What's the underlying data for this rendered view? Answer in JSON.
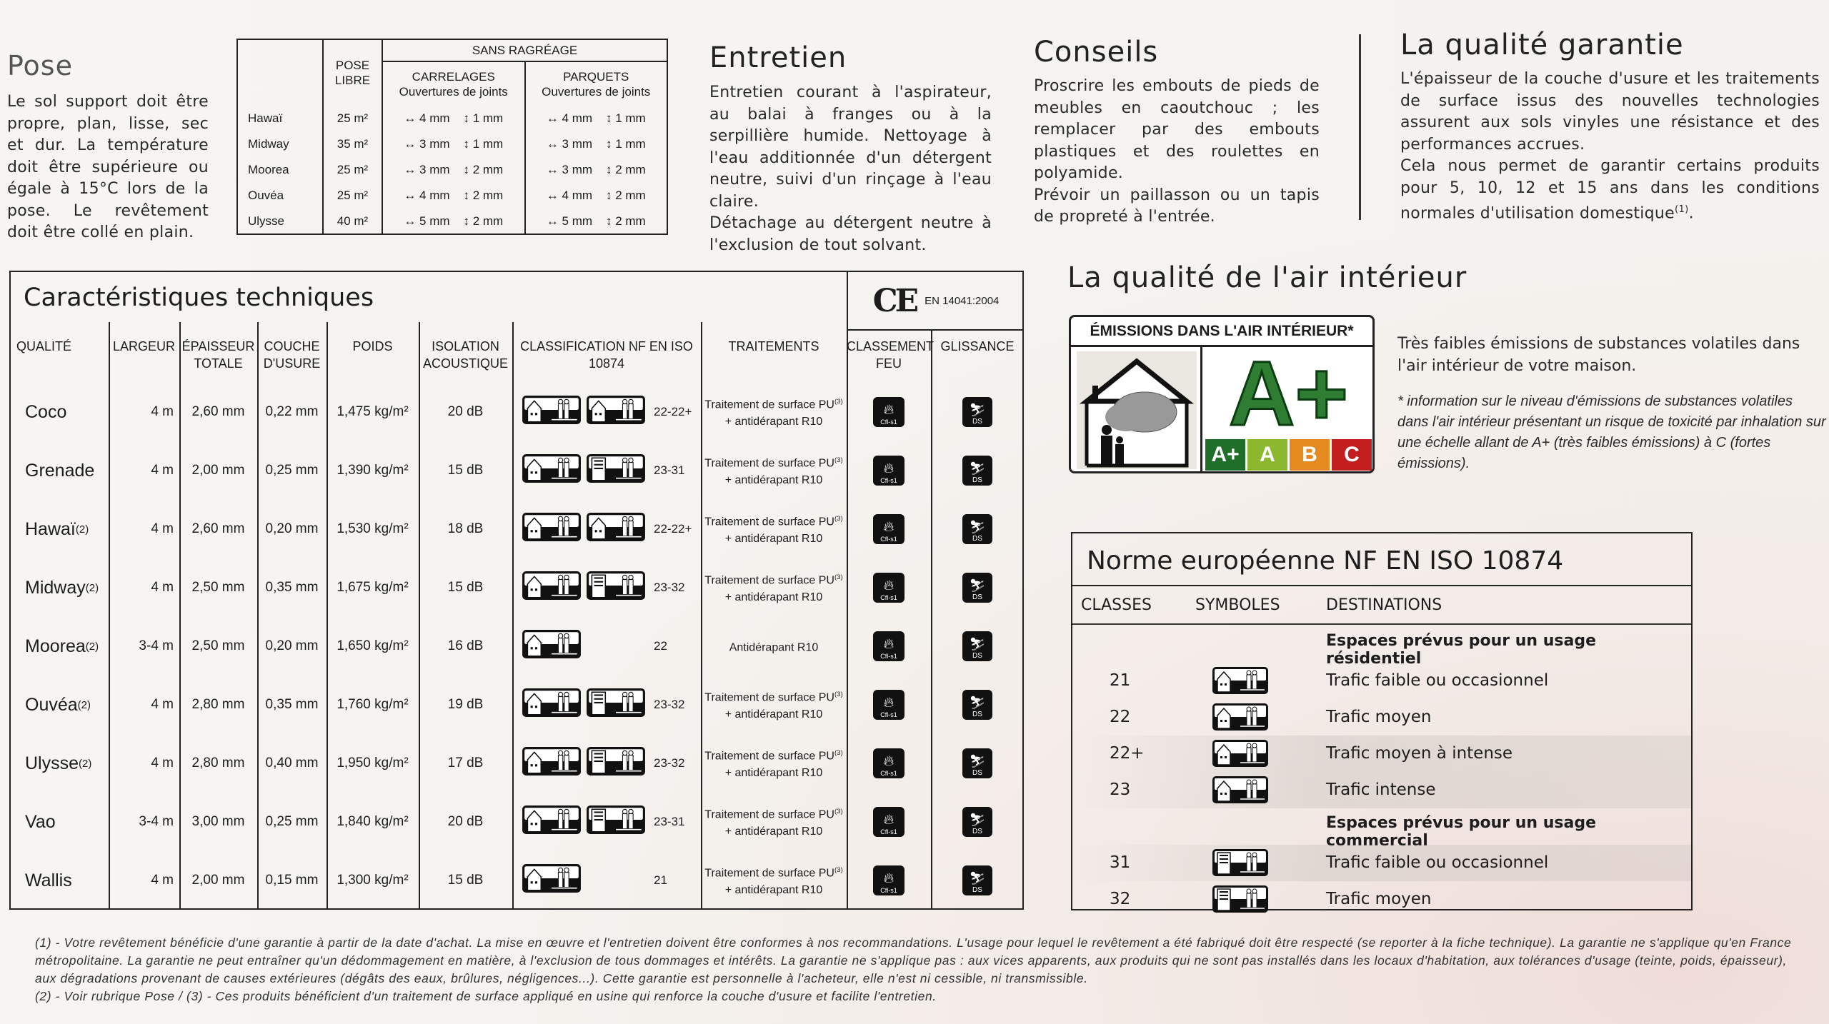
{
  "pose": {
    "title": "Pose",
    "text": "Le sol support doit être propre, plan, lisse, sec et dur. La température doit être supérieure ou égale à 15°C lors de la pose. Le revêtement doit être collé en plain.",
    "table": {
      "header_pose": "POSE LIBRE",
      "header_sans": "SANS RAGRÉAGE",
      "header_carrelages": "CARRELAGES",
      "header_parquets": "PARQUETS",
      "header_joints": "Ouvertures de joints",
      "rows": [
        {
          "name": "Hawaï",
          "pose": "25 m²",
          "c_h": "4 mm",
          "c_v": "1 mm",
          "p_h": "4 mm",
          "p_v": "1 mm"
        },
        {
          "name": "Midway",
          "pose": "35 m²",
          "c_h": "3 mm",
          "c_v": "1 mm",
          "p_h": "3 mm",
          "p_v": "1 mm"
        },
        {
          "name": "Moorea",
          "pose": "25 m²",
          "c_h": "3 mm",
          "c_v": "2 mm",
          "p_h": "3 mm",
          "p_v": "2 mm"
        },
        {
          "name": "Ouvéa",
          "pose": "25 m²",
          "c_h": "4 mm",
          "c_v": "2 mm",
          "p_h": "4 mm",
          "p_v": "2 mm"
        },
        {
          "name": "Ulysse",
          "pose": "40 m²",
          "c_h": "5 mm",
          "c_v": "2 mm",
          "p_h": "5 mm",
          "p_v": "2 mm"
        }
      ]
    }
  },
  "entretien": {
    "title": "Entretien",
    "p1": "Entretien courant à l'aspirateur, au balai à franges ou à la serpillière humide. Nettoyage à l'eau additionnée d'un détergent neutre, suivi d'un rinçage à l'eau claire.",
    "p2": "Détachage au détergent neutre à l'exclusion de tout solvant."
  },
  "conseils": {
    "title": "Conseils",
    "p1": "Proscrire les embouts de pieds de meubles en caoutchouc ; les remplacer par des embouts plastiques et des roulettes en polyamide.",
    "p2": "Prévoir un paillasson ou un tapis de propreté à l'entrée."
  },
  "garantie": {
    "title": "La qualité garantie",
    "p1": "L'épaisseur de la couche d'usure et les traitements de surface issus des nouvelles technologies assurent aux sols vinyles une résistance et des performances accrues.",
    "p2": "Cela nous permet de garantir certains produits pour 5, 10, 12 et 15 ans dans les conditions normales d'utilisation domestique",
    "p2_note": "(1)",
    "p2_end": "."
  },
  "tech": {
    "title": "Caractéristiques techniques",
    "ce_mark": "CE",
    "ce_norm": "EN 14041:2004",
    "headers": [
      "QUALITÉ",
      "LARGEUR",
      "ÉPAISSEUR TOTALE",
      "COUCHE D'USURE",
      "POIDS",
      "ISOLATION ACOUSTIQUE",
      "CLASSIFICATION NF EN ISO 10874",
      "TRAITEMENTS",
      "CLASSEMENT FEU",
      "GLISSANCE"
    ],
    "fire_label": "Cfl-s1",
    "slip_label": "DS",
    "rows": [
      {
        "name": "Coco",
        "note": "",
        "largeur": "4 m",
        "epaisseur": "2,60 mm",
        "couche": "0,22 mm",
        "poids": "1,475 kg/m²",
        "isolation": "20 dB",
        "icons": [
          "residential",
          "residential"
        ],
        "classes": "22-22+",
        "treat1": "Traitement de surface PU",
        "treat_note": "(3)",
        "treat2": "+ antidérapant R10"
      },
      {
        "name": "Grenade",
        "note": "",
        "largeur": "4 m",
        "epaisseur": "2,00 mm",
        "couche": "0,25 mm",
        "poids": "1,390 kg/m²",
        "isolation": "15 dB",
        "icons": [
          "residential",
          "commercial"
        ],
        "classes": "23-31",
        "treat1": "Traitement de surface PU",
        "treat_note": "(3)",
        "treat2": "+ antidérapant R10"
      },
      {
        "name": "Hawaï",
        "note": "(2)",
        "largeur": "4 m",
        "epaisseur": "2,60 mm",
        "couche": "0,20 mm",
        "poids": "1,530 kg/m²",
        "isolation": "18 dB",
        "icons": [
          "residential",
          "residential"
        ],
        "classes": "22-22+",
        "treat1": "Traitement de surface PU",
        "treat_note": "(3)",
        "treat2": "+ antidérapant R10"
      },
      {
        "name": "Midway",
        "note": "(2)",
        "largeur": "4 m",
        "epaisseur": "2,50 mm",
        "couche": "0,35 mm",
        "poids": "1,675 kg/m²",
        "isolation": "15 dB",
        "icons": [
          "residential",
          "commercial"
        ],
        "classes": "23-32",
        "treat1": "Traitement de surface PU",
        "treat_note": "(3)",
        "treat2": "+ antidérapant R10"
      },
      {
        "name": "Moorea",
        "note": "(2)",
        "largeur": "3-4 m",
        "epaisseur": "2,50 mm",
        "couche": "0,20 mm",
        "poids": "1,650 kg/m²",
        "isolation": "16 dB",
        "icons": [
          "residential"
        ],
        "classes": "22",
        "treat1": "Antidérapant R10",
        "treat_note": "",
        "treat2": ""
      },
      {
        "name": "Ouvéa",
        "note": "(2)",
        "largeur": "4 m",
        "epaisseur": "2,80 mm",
        "couche": "0,35 mm",
        "poids": "1,760 kg/m²",
        "isolation": "19 dB",
        "icons": [
          "residential",
          "commercial"
        ],
        "classes": "23-32",
        "treat1": "Traitement de surface PU",
        "treat_note": "(3)",
        "treat2": "+ antidérapant R10"
      },
      {
        "name": "Ulysse",
        "note": "(2)",
        "largeur": "4 m",
        "epaisseur": "2,80 mm",
        "couche": "0,40 mm",
        "poids": "1,950 kg/m²",
        "isolation": "17 dB",
        "icons": [
          "residential",
          "commercial"
        ],
        "classes": "23-32",
        "treat1": "Traitement de surface PU",
        "treat_note": "(3)",
        "treat2": "+ antidérapant R10"
      },
      {
        "name": "Vao",
        "note": "",
        "largeur": "3-4 m",
        "epaisseur": "3,00 mm",
        "couche": "0,25 mm",
        "poids": "1,840 kg/m²",
        "isolation": "20 dB",
        "icons": [
          "residential",
          "commercial"
        ],
        "classes": "23-31",
        "treat1": "Traitement de surface PU",
        "treat_note": "(3)",
        "treat2": "+ antidérapant R10"
      },
      {
        "name": "Wallis",
        "note": "",
        "largeur": "4 m",
        "epaisseur": "2,00 mm",
        "couche": "0,15 mm",
        "poids": "1,300 kg/m²",
        "isolation": "15 dB",
        "icons": [
          "residential"
        ],
        "classes": "21",
        "treat1": "Traitement de surface PU",
        "treat_note": "(3)",
        "treat2": "+ antidérapant R10"
      }
    ]
  },
  "air": {
    "title": "La qualité de l'air intérieur",
    "label_title": "ÉMISSIONS DANS L'AIR INTÉRIEUR*",
    "grade": "A+",
    "scale": [
      {
        "label": "A+",
        "color": "#1f6e2a"
      },
      {
        "label": "A",
        "color": "#8bb82f"
      },
      {
        "label": "B",
        "color": "#e58a1f"
      },
      {
        "label": "C",
        "color": "#c41f1f"
      }
    ],
    "p1": "Très faibles émissions de substances volatiles dans l'air intérieur de votre maison.",
    "p2": "* information sur le niveau d'émissions de substances volatiles dans l'air intérieur présentant un risque de toxicité par inhalation sur une échelle allant de A+ (très faibles émissions) à C (fortes émissions)."
  },
  "norme": {
    "title": "Norme européenne NF EN ISO 10874",
    "headers": [
      "CLASSES",
      "SYMBOLES",
      "DESTINATIONS"
    ],
    "rows": [
      {
        "section": "Espaces prévus pour un usage résidentiel"
      },
      {
        "class": "21",
        "icon": "residential",
        "dest": "Trafic faible ou occasionnel"
      },
      {
        "class": "22",
        "icon": "residential",
        "dest": "Trafic moyen"
      },
      {
        "class": "22+",
        "icon": "residential",
        "dest": "Trafic moyen à intense"
      },
      {
        "class": "23",
        "icon": "residential",
        "dest": "Trafic intense"
      },
      {
        "section": "Espaces prévus pour un usage commercial"
      },
      {
        "class": "31",
        "icon": "commercial",
        "dest": "Trafic faible ou occasionnel"
      },
      {
        "class": "32",
        "icon": "commercial",
        "dest": "Trafic moyen"
      }
    ]
  },
  "footnotes": [
    "(1) - Votre revêtement bénéficie d'une garantie à partir de la date d'achat. La mise en œuvre et l'entretien doivent être conformes à nos recommandations. L'usage pour lequel le revêtement a été fabriqué doit être respecté (se reporter à la fiche technique). La garantie ne s'applique qu'en France métropolitaine. La garantie ne peut entraîner qu'un dédommagement en matière, à l'exclusion de tous dommages et intérêts. La garantie ne s'applique pas : aux vices apparents, aux produits qui ne sont pas installés dans les locaux d'habitation, aux tolérances d'usage (teinte, poids, épaisseur), aux dégradations provenant de causes extérieures (dégâts des eaux, brûlures, négligences...). Cette garantie est personnelle à l'acheteur, elle n'est ni cessible, ni transmissible.",
    "(2) - Voir rubrique Pose / (3) - Ces produits bénéficient d'un traitement de surface appliqué en usine qui renforce la couche d'usure et facilite l'entretien."
  ]
}
